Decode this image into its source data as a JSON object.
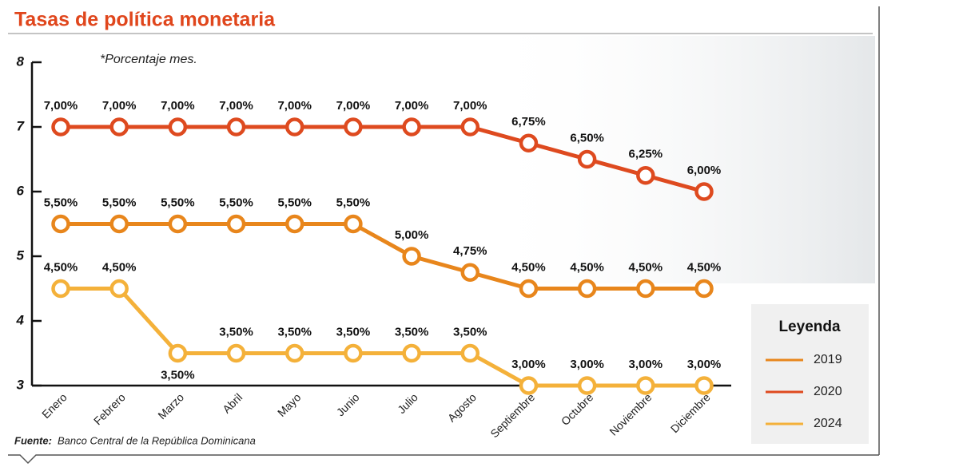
{
  "chart_data": {
    "type": "line",
    "title": "Tasas de política monetaria",
    "subtitle": "*Porcentaje mes.",
    "source_label": "Fuente:",
    "source": "Banco Central de la República Dominicana",
    "legend_title": "Leyenda",
    "legend_position": "lower right",
    "categories": [
      "Enero",
      "Febrero",
      "Marzo",
      "Abril",
      "Mayo",
      "Junio",
      "Julio",
      "Agosto",
      "Septiembre",
      "Octubre",
      "Noviembre",
      "Diciembre"
    ],
    "ylim": [
      3,
      8
    ],
    "yticks": [
      3,
      4,
      5,
      6,
      7,
      8
    ],
    "series": [
      {
        "name": "2019",
        "color": "#e8861c",
        "values": [
          5.5,
          5.5,
          5.5,
          5.5,
          5.5,
          5.5,
          5.0,
          4.75,
          4.5,
          4.5,
          4.5,
          4.5
        ],
        "value_labels": [
          "5,50%",
          "5,50%",
          "5,50%",
          "5,50%",
          "5,50%",
          "5,50%",
          "5,00%",
          "4,75%",
          "4,50%",
          "4,50%",
          "4,50%",
          "4,50%"
        ]
      },
      {
        "name": "2020",
        "color": "#de4a1f",
        "values": [
          7,
          7,
          7,
          7,
          7,
          7,
          7,
          7,
          6.75,
          6.5,
          6.25,
          6.0
        ],
        "value_labels": [
          "7,00%",
          "7,00%",
          "7,00%",
          "7,00%",
          "7,00%",
          "7,00%",
          "7,00%",
          "7,00%",
          "6,75%",
          "6,50%",
          "6,25%",
          "6,00%"
        ]
      },
      {
        "name": "2024",
        "color": "#f4b13a",
        "values": [
          4.5,
          4.5,
          3.5,
          3.5,
          3.5,
          3.5,
          3.5,
          3.5,
          3,
          3,
          3,
          3
        ],
        "value_labels": [
          "4,50%",
          "4,50%",
          "3,50%",
          "3,50%",
          "3,50%",
          "3,50%",
          "3,50%",
          "3,50%",
          "3,00%",
          "3,00%",
          "3,00%",
          "3,00%"
        ]
      }
    ]
  }
}
